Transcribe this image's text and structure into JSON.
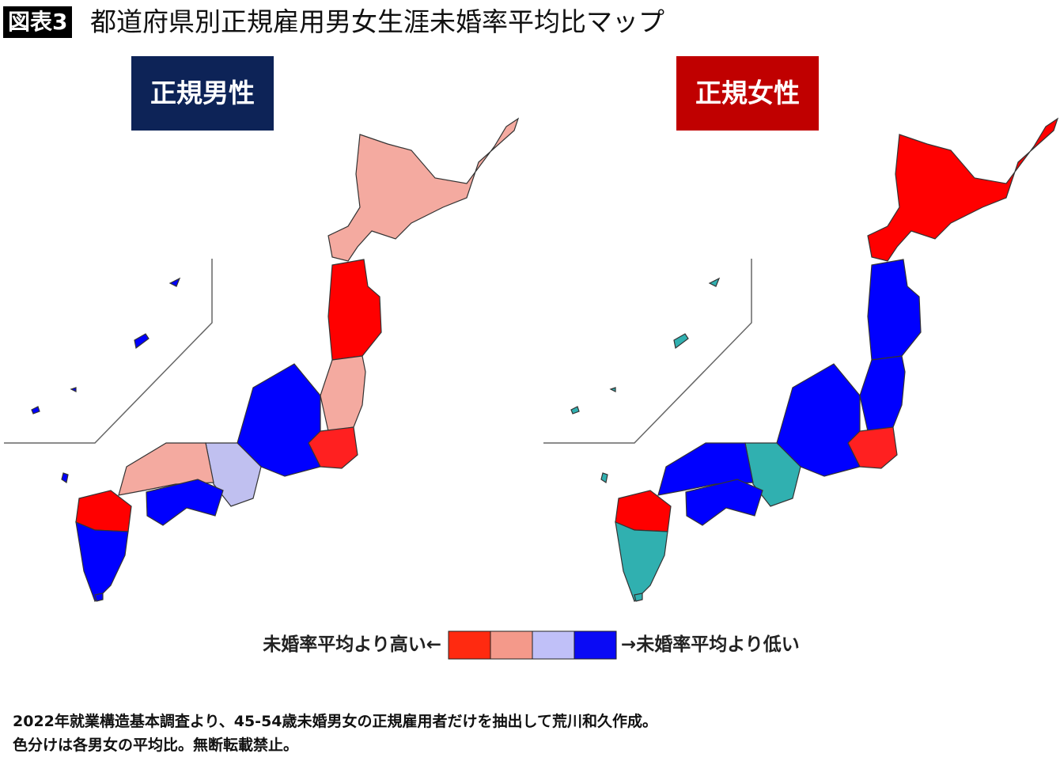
{
  "header": {
    "badge": "図表3",
    "title": "都道府県別正規雇用男女生涯未婚率平均比マップ"
  },
  "panels": [
    {
      "label": "正規男性"
    },
    {
      "label": "正規女性"
    }
  ],
  "legend": {
    "high": "未婚率平均より高い←",
    "low": "→未婚率平均より低い"
  },
  "notes": [
    "2022年就業構造基本調査より、45-54歳未婚男女の正規雇用者だけを抽出して荒川和久作成。",
    "色分けは各男女の平均比。無断転載禁止。"
  ]
}
